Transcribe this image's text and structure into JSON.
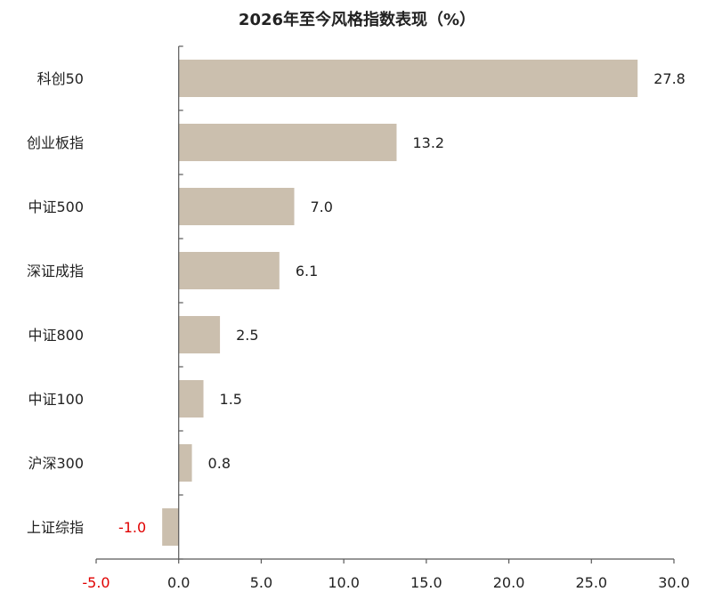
{
  "chart_data": {
    "type": "bar",
    "orientation": "horizontal",
    "title": "2026年至今风格指数表现（%）",
    "categories": [
      "科创50",
      "创业板指",
      "中证500",
      "深证成指",
      "中证800",
      "中证100",
      "沪深300",
      "上证综指"
    ],
    "values": [
      27.8,
      13.2,
      7.0,
      6.1,
      2.5,
      1.5,
      0.8,
      -1.0
    ],
    "value_labels": [
      "27.8",
      "13.2",
      "7.0",
      "6.1",
      "2.5",
      "1.5",
      "0.8",
      "-1.0"
    ],
    "x_ticks": [
      -5.0,
      0.0,
      5.0,
      10.0,
      15.0,
      20.0,
      25.0,
      30.0
    ],
    "x_tick_labels": [
      "-5.0",
      "0.0",
      "5.0",
      "10.0",
      "15.0",
      "20.0",
      "25.0",
      "30.0"
    ],
    "xlim": [
      -5.0,
      30.0
    ],
    "xlabel": "",
    "ylabel": "",
    "grid": false,
    "legend": "none",
    "colors": {
      "bar": "#cbbfae",
      "axis": "#595959",
      "text": "#222222",
      "negative_label": "#e00000"
    }
  }
}
